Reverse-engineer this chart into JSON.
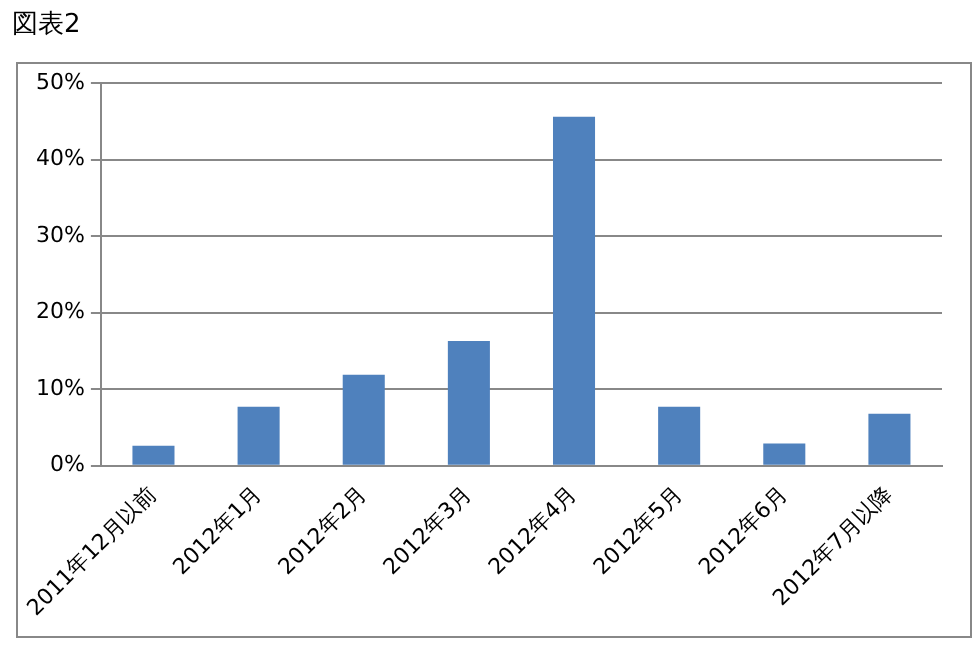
{
  "chart_data": {
    "type": "bar",
    "title": "図表2",
    "categories": [
      "2011年12月以前",
      "2012年1月",
      "2012年2月",
      "2012年3月",
      "2012年4月",
      "2012年5月",
      "2012年6月",
      "2012年7月以降"
    ],
    "values": [
      2.6,
      7.7,
      11.9,
      16.3,
      45.6,
      7.7,
      2.9,
      6.8
    ],
    "color": "#4f81bd",
    "ylim": [
      0,
      50
    ],
    "yticks": [
      {
        "value": 0,
        "label": "0%"
      },
      {
        "value": 10,
        "label": "10%"
      },
      {
        "value": 20,
        "label": "20%"
      },
      {
        "value": 30,
        "label": "30%"
      },
      {
        "value": 40,
        "label": "40%"
      },
      {
        "value": 50,
        "label": "50%"
      }
    ],
    "grid": "y",
    "legend": false
  }
}
